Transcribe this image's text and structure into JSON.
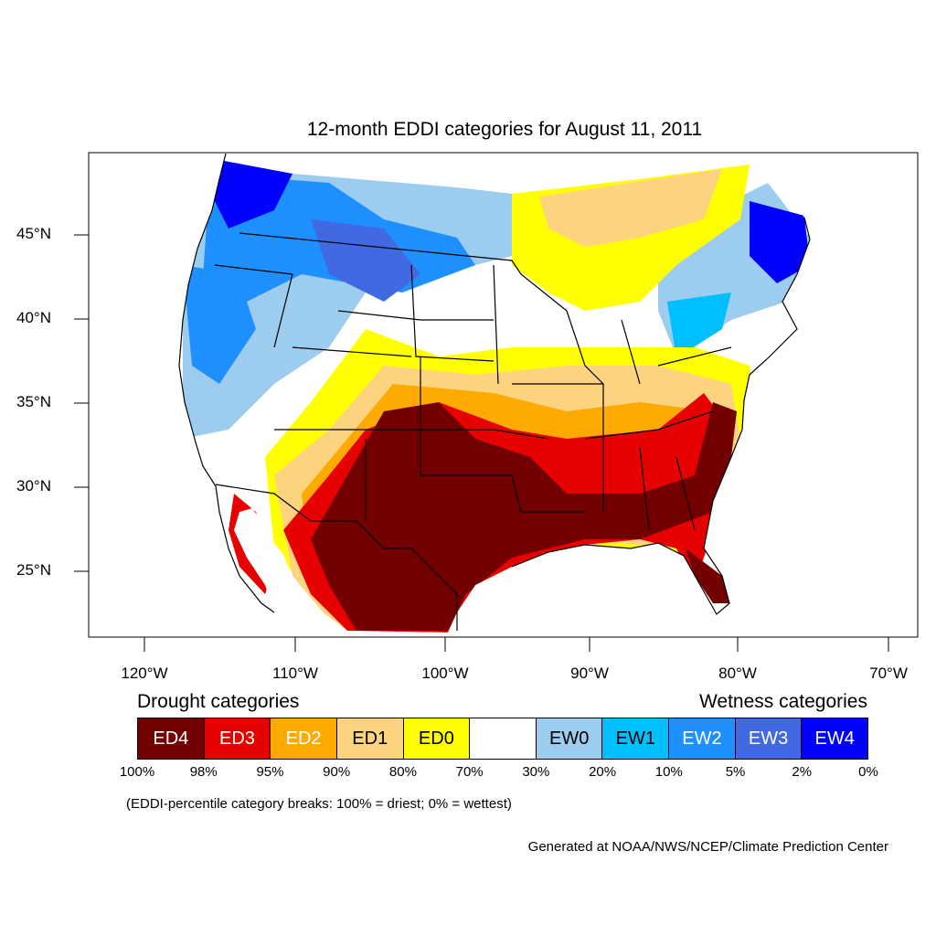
{
  "title": "12-month EDDI categories for August 11, 2011",
  "lat_labels": [
    "45°N",
    "40°N",
    "35°N",
    "30°N",
    "25°N"
  ],
  "lon_labels": [
    "120°W",
    "110°W",
    "100°W",
    "90°W",
    "80°W",
    "70°W"
  ],
  "legend": {
    "drought_heading": "Drought categories",
    "wetness_heading": "Wetness categories",
    "categories": [
      {
        "label": "ED4",
        "color": "#730000",
        "text_color": "#ffffff"
      },
      {
        "label": "ED3",
        "color": "#e60000",
        "text_color": "#ffffff"
      },
      {
        "label": "ED2",
        "color": "#ffaa00",
        "text_color": "#ffffff"
      },
      {
        "label": "ED1",
        "color": "#fcd37f",
        "text_color": "#000000"
      },
      {
        "label": "ED0",
        "color": "#ffff00",
        "text_color": "#000000"
      },
      {
        "label": "",
        "color": "#ffffff",
        "text_color": "#000000"
      },
      {
        "label": "EW0",
        "color": "#9ccdef",
        "text_color": "#000000"
      },
      {
        "label": "EW1",
        "color": "#00bfff",
        "text_color": "#000000"
      },
      {
        "label": "EW2",
        "color": "#1e90ff",
        "text_color": "#ffffff"
      },
      {
        "label": "EW3",
        "color": "#4169e1",
        "text_color": "#ffffff"
      },
      {
        "label": "EW4",
        "color": "#0000ff",
        "text_color": "#ffffff"
      }
    ],
    "breaks": [
      "100%",
      "98%",
      "95%",
      "90%",
      "80%",
      "70%",
      "30%",
      "20%",
      "10%",
      "5%",
      "2%",
      "0%"
    ]
  },
  "footnote": "(EDDI-percentile category breaks: 100% = driest; 0% = wettest)",
  "credit": "Generated at NOAA/NWS/NCEP/Climate Prediction Center"
}
